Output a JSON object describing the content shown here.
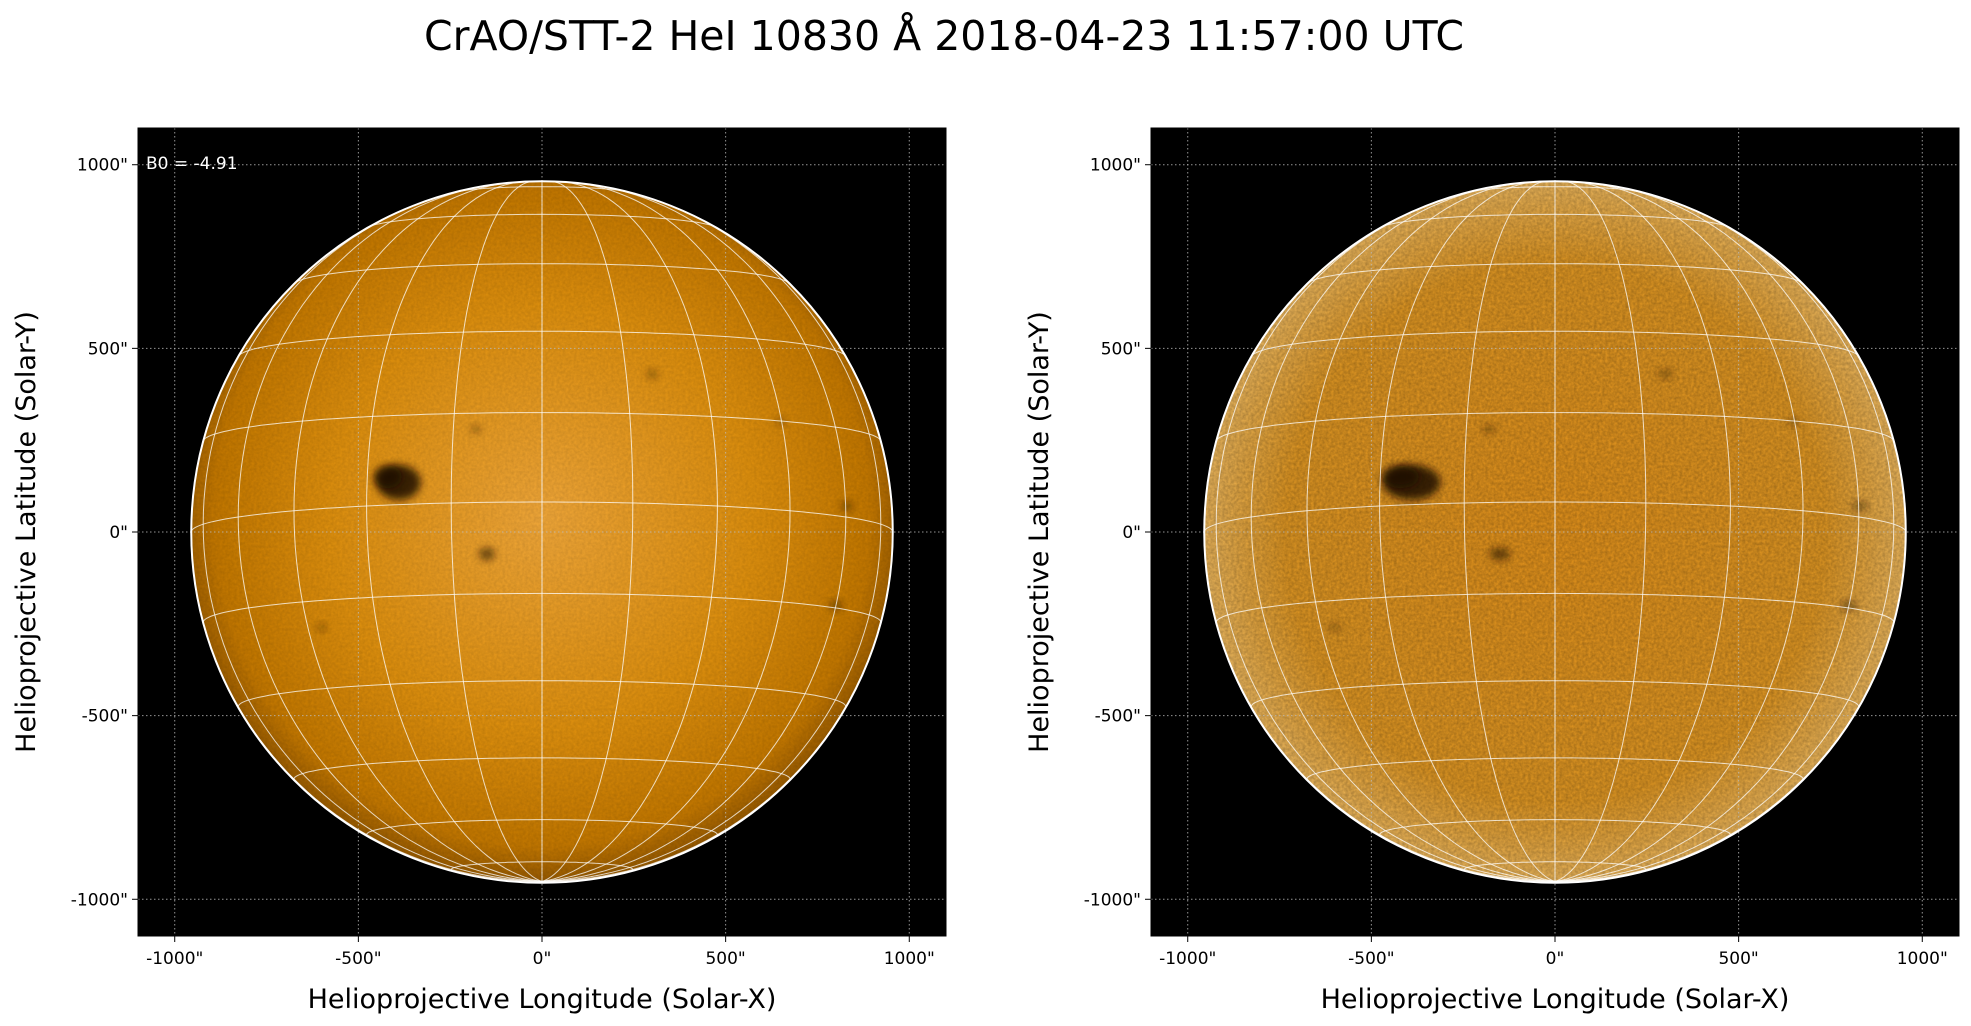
{
  "title": "CrAO/STT-2 HeI 10830 Å 2018-04-23 11:57:00 UTC",
  "panels": [
    {
      "id": "left",
      "annotation": "B0 = -4.91",
      "xlabel": "Helioprojective Longitude (Solar-X)",
      "ylabel": "Helioprojective Latitude (Solar-Y)",
      "xticks": [
        "-1000\"",
        "-500\"",
        "0\"",
        "500\"",
        "1000\""
      ],
      "yticks": [
        "1000\"",
        "500\"",
        "0\"",
        "-500\"",
        "-1000\""
      ],
      "style": "raw"
    },
    {
      "id": "right",
      "annotation": "",
      "xlabel": "Helioprojective Longitude (Solar-X)",
      "ylabel": "Helioprojective Latitude (Solar-Y)",
      "xticks": [
        "-1000\"",
        "-500\"",
        "0\"",
        "500\"",
        "1000\""
      ],
      "yticks": [
        "1000\"",
        "500\"",
        "0\"",
        "-500\"",
        "-1000\""
      ],
      "style": "enhanced"
    }
  ],
  "axes": {
    "xlim_arcsec": [
      -1100,
      1100
    ],
    "ylim_arcsec": [
      -1100,
      1100
    ],
    "tick_values_arcsec": [
      -1000,
      -500,
      0,
      500,
      1000
    ],
    "solar_radius_arcsec": 955,
    "b0_deg": -4.91,
    "grid_spacing_deg": 15
  },
  "colors": {
    "background": "#000000",
    "disk_center": "#f0a030",
    "disk_edge": "#b06800",
    "grid": "#ffffff",
    "limb": "#ffffff",
    "dotted_grid": "#bbbbbb"
  }
}
